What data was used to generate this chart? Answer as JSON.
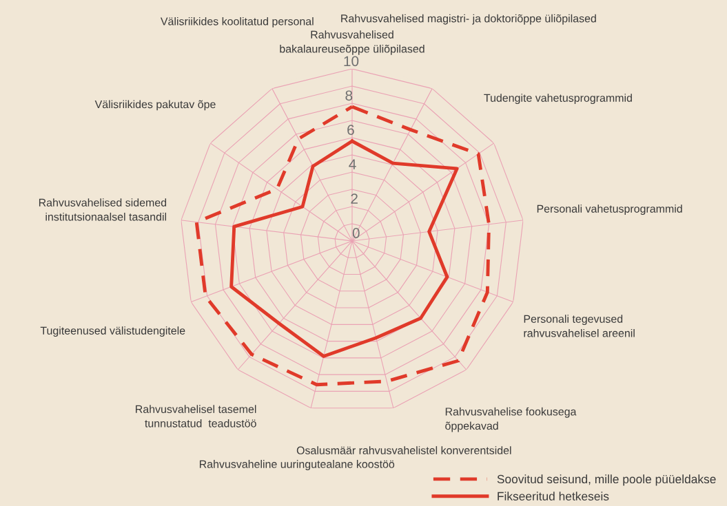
{
  "chart_data": {
    "type": "radar",
    "categories": [
      "Rahvusvahelised\nbakalaureuseõppe üliõpilased",
      "Rahvusvahelised magistri- ja doktoriõppe üliõpilased",
      "Tudengite vahetusprogrammid",
      "Personali vahetusprogrammid",
      "Personali tegevused\nrahvusvahelisel areenil",
      "Rahvusvahelise fookusega\nõppekavad",
      "Osalusmäär rahvusvahelistel konverentsidel",
      "Rahvusvaheline uuringutealane koostöö",
      "Rahvusvahelisel tasemel\ntunnustatud  teadustöö",
      "Tugiteenused välistudengitele",
      "Rahvusvahelised sidemed\ninstitutsionaalsel tasandil",
      "Välisriikides pakutav õpe",
      "Välisriikides koolitatud personal"
    ],
    "series": [
      {
        "name": "Soovitud seisund, mille poole püüeldakse",
        "color": "#e03a2a",
        "line_style": "dashed",
        "values": [
          7.8,
          7.3,
          8.9,
          8.0,
          8.4,
          9.3,
          8.4,
          8.6,
          8.8,
          9.1,
          9.1,
          5.3,
          6.7
        ]
      },
      {
        "name": "Fikseeritud hetkeseis",
        "color": "#e03a2a",
        "line_style": "solid",
        "values": [
          5.8,
          5.1,
          7.4,
          4.5,
          5.9,
          6.0,
          5.8,
          6.9,
          6.4,
          7.5,
          6.9,
          3.5,
          4.9
        ]
      }
    ],
    "ylim": [
      0,
      10
    ],
    "yticks": [
      0,
      2,
      4,
      6,
      8,
      10
    ],
    "grid": true,
    "legend": "bottom right"
  }
}
